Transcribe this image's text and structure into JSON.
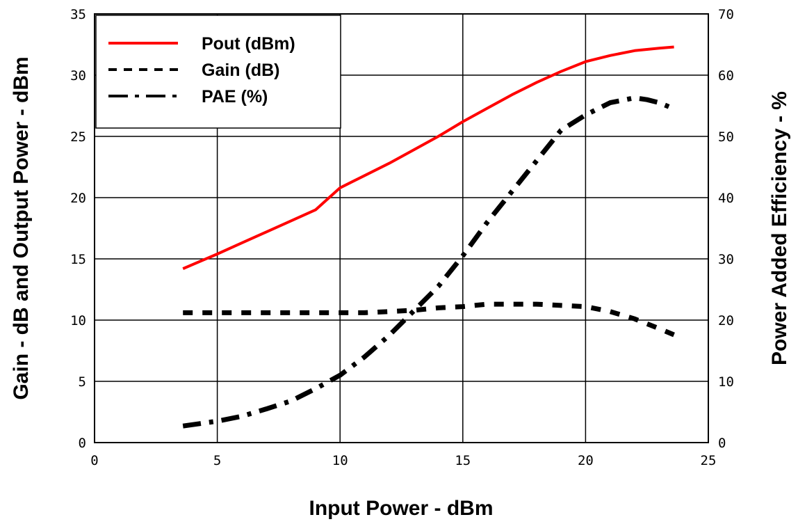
{
  "chart_data": {
    "type": "line",
    "xlabel": "Input Power - dBm",
    "ylabel": "Gain  - dB and Output Power - dBm",
    "y2label": "Power Added Efficiency - %",
    "xlim": [
      0,
      25
    ],
    "ylim": [
      0,
      35
    ],
    "y2lim": [
      0,
      70
    ],
    "xticks": [
      "0",
      "5",
      "10",
      "15",
      "20",
      "25"
    ],
    "yticks": [
      "0",
      "5",
      "10",
      "15",
      "20",
      "25",
      "30",
      "35"
    ],
    "y2ticks": [
      "0",
      "10",
      "20",
      "30",
      "40",
      "50",
      "60",
      "70"
    ],
    "grid": true,
    "legend_position": "top-left",
    "series": [
      {
        "name": "Pout (dBm)",
        "axis": "left",
        "color": "#ff0000",
        "style": "solid",
        "x": [
          3.6,
          5,
          6,
          7,
          8,
          9,
          10,
          11,
          12,
          13,
          14,
          15,
          16,
          17,
          18,
          19,
          20,
          21,
          22,
          23,
          23.6
        ],
        "y": [
          14.2,
          15.4,
          16.3,
          17.2,
          18.1,
          19.0,
          20.8,
          21.8,
          22.8,
          23.9,
          25.0,
          26.2,
          27.3,
          28.4,
          29.4,
          30.3,
          31.1,
          31.6,
          32.0,
          32.2,
          32.3
        ]
      },
      {
        "name": "Gain (dB)",
        "axis": "left",
        "color": "#000000",
        "style": "dashed",
        "x": [
          3.6,
          5,
          6,
          7,
          8,
          9,
          10,
          11,
          12,
          13,
          14,
          15,
          16,
          17,
          18,
          19,
          20,
          21,
          22,
          23,
          23.6
        ],
        "y": [
          10.6,
          10.6,
          10.6,
          10.6,
          10.6,
          10.6,
          10.6,
          10.6,
          10.7,
          10.8,
          11.0,
          11.1,
          11.3,
          11.3,
          11.3,
          11.2,
          11.1,
          10.7,
          10.1,
          9.3,
          8.8
        ]
      },
      {
        "name": "PAE (%)",
        "axis": "right",
        "color": "#000000",
        "style": "dashdot",
        "x": [
          3.6,
          5,
          6,
          7,
          8,
          9,
          10,
          11,
          12,
          13,
          14,
          15,
          16,
          17,
          18,
          19,
          20,
          21,
          22,
          22.5,
          23,
          23.6
        ],
        "y": [
          2.7,
          3.5,
          4.3,
          5.5,
          6.8,
          8.8,
          11.0,
          14.0,
          17.5,
          21.5,
          25.5,
          30.5,
          36.0,
          41.0,
          46.0,
          51.0,
          53.5,
          55.5,
          56.3,
          56.0,
          55.5,
          54.5
        ]
      }
    ]
  }
}
